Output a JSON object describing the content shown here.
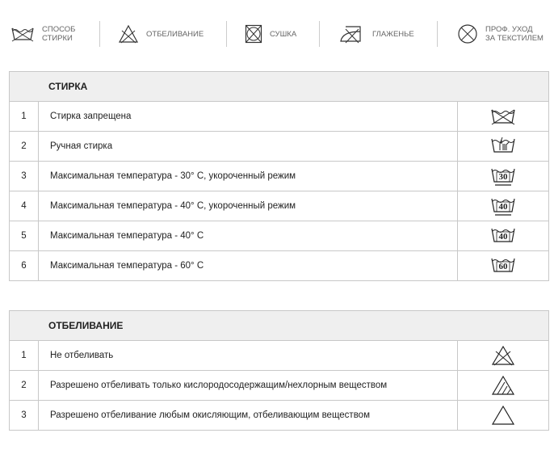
{
  "legend": [
    {
      "icon": "wash-icon",
      "label": "СПОСОБ\nСТИРКИ"
    },
    {
      "icon": "bleach-icon",
      "label": "ОТБЕЛИВАНИЕ"
    },
    {
      "icon": "dry-icon",
      "label": "СУШКА"
    },
    {
      "icon": "iron-icon",
      "label": "ГЛАЖЕНЬЕ"
    },
    {
      "icon": "professional-care-icon",
      "label": "ПРОФ. УХОД\nЗА ТЕКСТИЛЕМ"
    }
  ],
  "washing": {
    "title": "СТИРКА",
    "rows": [
      {
        "num": "1",
        "text": "Стирка запрещена",
        "icon": "no-wash-icon"
      },
      {
        "num": "2",
        "text": "Ручная стирка",
        "icon": "hand-wash-icon"
      },
      {
        "num": "3",
        "text": "Максимальная температура - 30° С, укороченный режим",
        "icon": "wash-30-gentle-icon",
        "temp": "30"
      },
      {
        "num": "4",
        "text": "Максимальная температура - 40° С, укороченный режим",
        "icon": "wash-40-gentle-icon",
        "temp": "40"
      },
      {
        "num": "5",
        "text": "Максимальная температура - 40° С",
        "icon": "wash-40-icon",
        "temp": "40"
      },
      {
        "num": "6",
        "text": "Максимальная температура - 60° С",
        "icon": "wash-60-icon",
        "temp": "60"
      }
    ]
  },
  "bleaching": {
    "title": "ОТБЕЛИВАНИЕ",
    "rows": [
      {
        "num": "1",
        "text": "Не отбеливать",
        "icon": "no-bleach-icon"
      },
      {
        "num": "2",
        "text": "Разрешено отбеливать только кислородосодержащим/нехлорным веществом",
        "icon": "non-chlorine-bleach-icon"
      },
      {
        "num": "3",
        "text": "Разрешено отбеливание любым окисляющим, отбеливающим веществом",
        "icon": "any-bleach-icon"
      }
    ]
  }
}
